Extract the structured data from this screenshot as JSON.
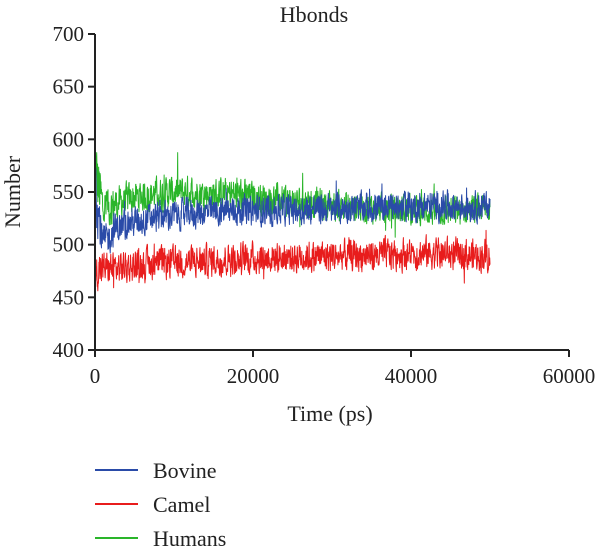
{
  "chart_data": {
    "type": "line",
    "title": "Hbonds",
    "xlabel": "Time (ps)",
    "ylabel": "Number",
    "xlim": [
      0,
      60000
    ],
    "ylim": [
      400,
      700
    ],
    "x_ticks": [
      "0",
      "20000",
      "40000",
      "60000"
    ],
    "y_ticks": [
      "400",
      "450",
      "500",
      "550",
      "600",
      "650",
      "700"
    ],
    "grid": false,
    "legend_position": "bottom-left",
    "x_range_data": [
      0,
      50000
    ],
    "series": [
      {
        "name": "Humans",
        "color": "#2ab52a",
        "x": [
          0,
          1000,
          2500,
          5000,
          7500,
          10000,
          12500,
          15000,
          17500,
          20000,
          22500,
          25000,
          27500,
          30000,
          32500,
          35000,
          37500,
          40000,
          42500,
          45000,
          47500,
          50000
        ],
        "mean": [
          570,
          535,
          538,
          545,
          548,
          550,
          550,
          548,
          548,
          545,
          543,
          540,
          540,
          537,
          536,
          535,
          534,
          533,
          532,
          532,
          533,
          535
        ],
        "amplitude": [
          40,
          22,
          16,
          15,
          15,
          15,
          15,
          15,
          15,
          15,
          15,
          15,
          15,
          15,
          14,
          14,
          14,
          14,
          14,
          14,
          14,
          14
        ]
      },
      {
        "name": "Bovine",
        "color": "#2a4ba8",
        "x": [
          0,
          1000,
          2500,
          5000,
          7500,
          10000,
          12500,
          15000,
          17500,
          20000,
          22500,
          25000,
          27500,
          30000,
          32500,
          35000,
          37500,
          40000,
          42500,
          45000,
          47500,
          50000
        ],
        "mean": [
          555,
          500,
          515,
          522,
          526,
          528,
          530,
          531,
          532,
          532,
          533,
          533,
          534,
          534,
          535,
          535,
          536,
          536,
          537,
          537,
          537,
          537
        ],
        "amplitude": [
          30,
          18,
          15,
          14,
          14,
          14,
          14,
          14,
          14,
          14,
          14,
          14,
          14,
          14,
          14,
          14,
          14,
          14,
          14,
          14,
          14,
          14
        ]
      },
      {
        "name": "Camel",
        "color": "#e81c1c",
        "x": [
          0,
          1000,
          2500,
          5000,
          7500,
          10000,
          12500,
          15000,
          17500,
          20000,
          22500,
          25000,
          27500,
          30000,
          32500,
          35000,
          37500,
          40000,
          42500,
          45000,
          47500,
          50000
        ],
        "mean": [
          475,
          478,
          478,
          480,
          482,
          483,
          484,
          485,
          486,
          487,
          488,
          488,
          489,
          489,
          490,
          490,
          491,
          491,
          492,
          491,
          490,
          490
        ],
        "amplitude": [
          18,
          15,
          15,
          15,
          15,
          15,
          15,
          15,
          15,
          15,
          15,
          15,
          15,
          15,
          15,
          15,
          15,
          15,
          15,
          15,
          15,
          15
        ]
      }
    ],
    "legend": [
      {
        "label": "Bovine",
        "color": "#2a4ba8"
      },
      {
        "label": "Camel",
        "color": "#e81c1c"
      },
      {
        "label": "Humans",
        "color": "#2ab52a"
      }
    ]
  }
}
